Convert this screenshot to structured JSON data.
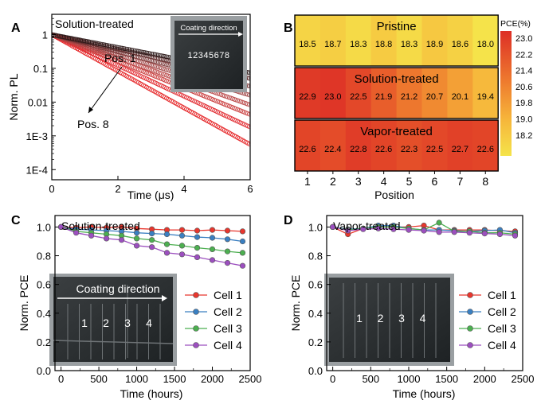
{
  "chart_data": [
    {
      "panel": "A",
      "type": "scatter",
      "title": "Solution-treated",
      "xlabel": "Time (μs)",
      "ylabel": "Norm. PL",
      "xlim": [
        0,
        6
      ],
      "ylim_log10": [
        -4.3,
        0.6
      ],
      "y_scale": "log",
      "x_ticks": [
        0,
        2,
        4,
        6
      ],
      "y_ticks": [
        {
          "value": 1,
          "label": "1"
        },
        {
          "value": 0.1,
          "label": "0.1"
        },
        {
          "value": 0.01,
          "label": "0.01"
        },
        {
          "value": 0.001,
          "label": "1E-3"
        },
        {
          "value": 0.0001,
          "label": "1E-4"
        }
      ],
      "annotations": [
        "Pos. 1",
        "Pos. 8"
      ],
      "inset": {
        "title": "Coating direction",
        "label": "12345678"
      },
      "series": [
        {
          "tau": 0.8,
          "floor": 0.00012,
          "color": "#e41a1c"
        },
        {
          "tau": 0.95,
          "floor": 0.00014,
          "color": "#e0242a"
        },
        {
          "tau": 1.1,
          "floor": 0.00016,
          "color": "#c93a3a"
        },
        {
          "tau": 1.25,
          "floor": 0.00019,
          "color": "#b84444"
        },
        {
          "tau": 1.45,
          "floor": 0.00022,
          "color": "#a04545"
        },
        {
          "tau": 1.7,
          "floor": 0.00026,
          "color": "#7a3838"
        },
        {
          "tau": 2.0,
          "floor": 0.0003,
          "color": "#5a2828"
        },
        {
          "tau": 2.3,
          "floor": 0.00035,
          "color": "#2a1818"
        }
      ]
    },
    {
      "panel": "B",
      "type": "heatmap",
      "xlabel": "Position",
      "categories": [
        "1",
        "2",
        "3",
        "4",
        "5",
        "6",
        "7",
        "8"
      ],
      "rows": [
        {
          "name": "Pristine",
          "values": [
            18.5,
            18.7,
            18.3,
            18.8,
            18.3,
            18.9,
            18.6,
            18.0
          ],
          "labels": [
            "18.5",
            "18.7",
            "18.3",
            "18.8",
            "18.3",
            "18.9",
            "18.6",
            "18.0"
          ]
        },
        {
          "name": "Solution-treated",
          "values": [
            22.9,
            23.0,
            22.5,
            21.9,
            21.2,
            20.7,
            20.1,
            19.4
          ],
          "labels": [
            "22.9",
            "23.0",
            "22.5",
            "21.9",
            "21.2",
            "20.7",
            "20.1",
            "19.4"
          ]
        },
        {
          "name": "Vapor-treated",
          "values": [
            22.6,
            22.4,
            22.8,
            22.6,
            22.3,
            22.5,
            22.7,
            22.6
          ],
          "labels": [
            "22.6",
            "22.4",
            "22.8",
            "22.6",
            "22.3",
            "22.5",
            "22.7",
            "22.6"
          ]
        }
      ],
      "colorbar": {
        "title": "PCE(%)",
        "range": [
          18.0,
          23.2
        ],
        "ticks": [
          "23.0",
          "22.2",
          "21.4",
          "20.6",
          "19.8",
          "19.0",
          "18.2"
        ]
      }
    },
    {
      "panel": "C",
      "type": "line",
      "title": "Solution-treated",
      "xlabel": "Time (hours)",
      "ylabel": "Norm. PCE",
      "xlim": [
        -80,
        2500
      ],
      "ylim": [
        0.0,
        1.08
      ],
      "x_ticks": [
        "0",
        "500",
        "1000",
        "1500",
        "2000",
        "2500"
      ],
      "y_ticks": [
        "0.0",
        "0.2",
        "0.4",
        "0.6",
        "0.8",
        "1.0"
      ],
      "x": [
        0,
        200,
        400,
        600,
        800,
        1000,
        1200,
        1400,
        1600,
        1800,
        2000,
        2200,
        2400
      ],
      "series": [
        {
          "name": "Cell 1",
          "color": "#e8362d",
          "values": [
            1.0,
            0.995,
            1.0,
            0.995,
            1.0,
            0.99,
            0.985,
            0.98,
            0.98,
            0.975,
            0.98,
            0.975,
            0.97
          ]
        },
        {
          "name": "Cell 2",
          "color": "#3a7fc1",
          "values": [
            1.0,
            0.985,
            0.98,
            0.975,
            0.97,
            0.96,
            0.955,
            0.95,
            0.94,
            0.93,
            0.925,
            0.915,
            0.9
          ]
        },
        {
          "name": "Cell 3",
          "color": "#4caf50",
          "values": [
            1.0,
            0.97,
            0.96,
            0.95,
            0.94,
            0.92,
            0.91,
            0.88,
            0.87,
            0.855,
            0.845,
            0.83,
            0.82
          ]
        },
        {
          "name": "Cell 4",
          "color": "#9c4fbf",
          "values": [
            1.0,
            0.96,
            0.94,
            0.92,
            0.91,
            0.87,
            0.86,
            0.82,
            0.81,
            0.79,
            0.77,
            0.75,
            0.73
          ]
        }
      ],
      "inset": {
        "title": "Coating direction",
        "cells": [
          "1",
          "2",
          "3",
          "4"
        ]
      }
    },
    {
      "panel": "D",
      "type": "line",
      "title": "Vapor-treated",
      "xlabel": "Time (hours)",
      "ylabel": "Norm. PCE",
      "xlim": [
        -80,
        2500
      ],
      "ylim": [
        0.0,
        1.08
      ],
      "x_ticks": [
        "0",
        "500",
        "1000",
        "1500",
        "2000",
        "2500"
      ],
      "y_ticks": [
        "0.0",
        "0.2",
        "0.4",
        "0.6",
        "0.8",
        "1.0"
      ],
      "x": [
        0,
        200,
        400,
        600,
        800,
        1000,
        1200,
        1400,
        1600,
        1800,
        2000,
        2200,
        2400
      ],
      "series": [
        {
          "name": "Cell 1",
          "color": "#e8362d",
          "values": [
            1.0,
            0.95,
            0.99,
            1.0,
            1.0,
            1.0,
            1.01,
            0.98,
            0.98,
            0.98,
            0.98,
            0.975,
            0.97
          ]
        },
        {
          "name": "Cell 2",
          "color": "#3a7fc1",
          "values": [
            1.0,
            0.985,
            0.99,
            1.01,
            1.01,
            0.99,
            0.98,
            0.98,
            0.975,
            0.97,
            0.975,
            0.98,
            0.96
          ]
        },
        {
          "name": "Cell 3",
          "color": "#4caf50",
          "values": [
            1.0,
            0.98,
            0.99,
            1.0,
            1.0,
            0.99,
            0.98,
            1.03,
            0.97,
            0.97,
            0.96,
            0.96,
            0.95
          ]
        },
        {
          "name": "Cell 4",
          "color": "#9c4fbf",
          "values": [
            1.0,
            0.975,
            0.985,
            0.99,
            0.985,
            0.98,
            0.975,
            0.965,
            0.965,
            0.96,
            0.955,
            0.95,
            0.94
          ]
        }
      ],
      "inset": {
        "cells": [
          "1",
          "2",
          "3",
          "4"
        ]
      }
    }
  ],
  "panel_labels": [
    "A",
    "B",
    "C",
    "D"
  ]
}
